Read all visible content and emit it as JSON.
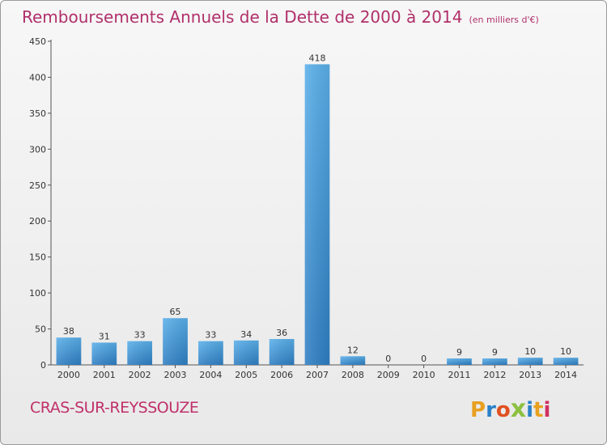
{
  "header": {
    "title": "Remboursements Annuels de la Dette de 2000 à 2014",
    "unit": "(en milliers d'€)"
  },
  "footer": {
    "city": "CRAS-SUR-REYSSOUZE",
    "logo_letters": [
      "P",
      "r",
      "o",
      "x",
      "i",
      "t",
      "i"
    ],
    "logo_colors": [
      "#e8a020",
      "#2a80c8",
      "#e05020",
      "#8cc040",
      "#2a80c8",
      "#e8a020",
      "#d03060"
    ]
  },
  "chart_data": {
    "type": "bar",
    "categories": [
      "2000",
      "2001",
      "2002",
      "2003",
      "2004",
      "2005",
      "2006",
      "2007",
      "2008",
      "2009",
      "2010",
      "2011",
      "2012",
      "2013",
      "2014"
    ],
    "values": [
      38,
      31,
      33,
      65,
      33,
      34,
      36,
      418,
      12,
      0,
      0,
      9,
      9,
      10,
      10
    ],
    "data_labels": [
      "38",
      "31",
      "33",
      "65",
      "33",
      "34",
      "36",
      "418",
      "12",
      "0",
      "0",
      "9",
      "9",
      "10",
      "10"
    ],
    "y_ticks": [
      0,
      50,
      100,
      150,
      200,
      250,
      300,
      350,
      400,
      450
    ],
    "ylim": [
      0,
      450
    ],
    "grid": false,
    "bar_color": "#3a8fd4"
  }
}
